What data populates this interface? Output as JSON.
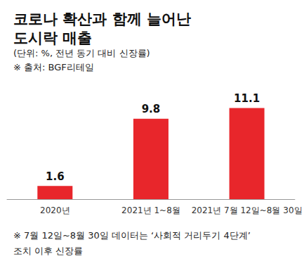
{
  "chart_data": {
    "type": "bar",
    "title": "코로나 확산과 함께 늘어난\n도시락 매출",
    "subtitle": "(단위: %, 전년 동기 대비 신장률)",
    "source": "※ 출처: BGF리테일",
    "note": "※ 7월 12일~8월 30일 데이터는 ‘사회적 거리두기 4단계’\n조치 이후 신장률",
    "categories": [
      "2020년",
      "2021년 1~8월",
      "2021년 7월 12일~8월 30일"
    ],
    "values": [
      1.6,
      9.8,
      11.1
    ],
    "color": "#e8262b",
    "ylim": [
      0,
      15
    ],
    "data_labels": true,
    "tick_labels": "x",
    "grid": false
  }
}
